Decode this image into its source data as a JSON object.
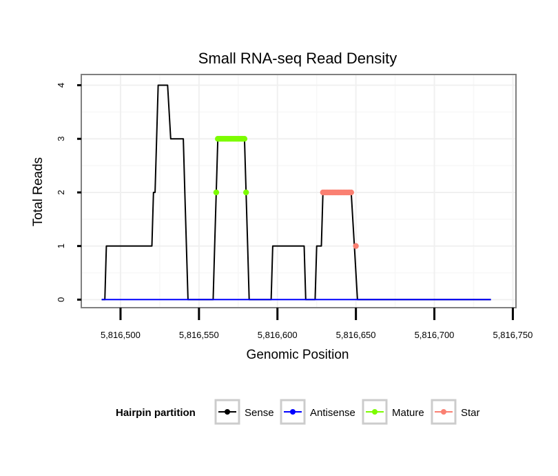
{
  "chart_data": {
    "type": "line",
    "title": "Small RNA-seq Read Density",
    "xlabel": "Genomic Position",
    "ylabel": "Total Reads",
    "xlim": [
      5816475,
      5816752
    ],
    "ylim": [
      -0.15,
      4.2
    ],
    "x_ticks": [
      5816500,
      5816550,
      5816600,
      5816650,
      5816700,
      5816750
    ],
    "x_tick_labels": [
      "5,816,500",
      "5,816,550",
      "5,816,600",
      "5,816,650",
      "5,816,700",
      "5,816,750"
    ],
    "y_ticks": [
      0,
      1,
      2,
      3,
      4
    ],
    "y_tick_labels": [
      "0",
      "1",
      "2",
      "3",
      "4"
    ],
    "grid": true,
    "legend": {
      "title": "Hairpin partition",
      "position": "bottom",
      "entries": [
        {
          "label": "Sense",
          "color": "#000000"
        },
        {
          "label": "Antisense",
          "color": "#0000ff"
        },
        {
          "label": "Mature",
          "color": "#7cfc00"
        },
        {
          "label": "Star",
          "color": "#fa8072"
        }
      ]
    },
    "series": [
      {
        "name": "Sense",
        "color": "#000000",
        "kind": "line",
        "points": [
          [
            5816488,
            0
          ],
          [
            5816490,
            0
          ],
          [
            5816491,
            1
          ],
          [
            5816520,
            1
          ],
          [
            5816521,
            2
          ],
          [
            5816522,
            2
          ],
          [
            5816524,
            4
          ],
          [
            5816530,
            4
          ],
          [
            5816532,
            3
          ],
          [
            5816540,
            3
          ],
          [
            5816541,
            2
          ],
          [
            5816543,
            0
          ],
          [
            5816544,
            0
          ],
          [
            5816559,
            0
          ],
          [
            5816560,
            1
          ],
          [
            5816561,
            2
          ],
          [
            5816562,
            3
          ],
          [
            5816579,
            3
          ],
          [
            5816580,
            2
          ],
          [
            5816581,
            1
          ],
          [
            5816582,
            0
          ],
          [
            5816596,
            0
          ],
          [
            5816597,
            1
          ],
          [
            5816617,
            1
          ],
          [
            5816618,
            0
          ],
          [
            5816624,
            0
          ],
          [
            5816625,
            1
          ],
          [
            5816628,
            1
          ],
          [
            5816629,
            2
          ],
          [
            5816647,
            2
          ],
          [
            5816649,
            1
          ],
          [
            5816651,
            0
          ],
          [
            5816736,
            0
          ]
        ]
      },
      {
        "name": "Antisense",
        "color": "#0000ff",
        "kind": "line",
        "points": [
          [
            5816488,
            0
          ],
          [
            5816736,
            0
          ]
        ]
      },
      {
        "name": "Mature",
        "color": "#7cfc00",
        "kind": "points",
        "points": [
          [
            5816561,
            2
          ],
          [
            5816562,
            3
          ],
          [
            5816563,
            3
          ],
          [
            5816564,
            3
          ],
          [
            5816565,
            3
          ],
          [
            5816566,
            3
          ],
          [
            5816567,
            3
          ],
          [
            5816568,
            3
          ],
          [
            5816569,
            3
          ],
          [
            5816570,
            3
          ],
          [
            5816571,
            3
          ],
          [
            5816572,
            3
          ],
          [
            5816573,
            3
          ],
          [
            5816574,
            3
          ],
          [
            5816575,
            3
          ],
          [
            5816576,
            3
          ],
          [
            5816577,
            3
          ],
          [
            5816578,
            3
          ],
          [
            5816579,
            3
          ],
          [
            5816580,
            2
          ]
        ]
      },
      {
        "name": "Star",
        "color": "#fa8072",
        "kind": "points",
        "points": [
          [
            5816629,
            2
          ],
          [
            5816630,
            2
          ],
          [
            5816631,
            2
          ],
          [
            5816632,
            2
          ],
          [
            5816633,
            2
          ],
          [
            5816634,
            2
          ],
          [
            5816635,
            2
          ],
          [
            5816636,
            2
          ],
          [
            5816637,
            2
          ],
          [
            5816638,
            2
          ],
          [
            5816639,
            2
          ],
          [
            5816640,
            2
          ],
          [
            5816641,
            2
          ],
          [
            5816642,
            2
          ],
          [
            5816643,
            2
          ],
          [
            5816644,
            2
          ],
          [
            5816645,
            2
          ],
          [
            5816646,
            2
          ],
          [
            5816647,
            2
          ],
          [
            5816650,
            1
          ]
        ]
      }
    ]
  }
}
